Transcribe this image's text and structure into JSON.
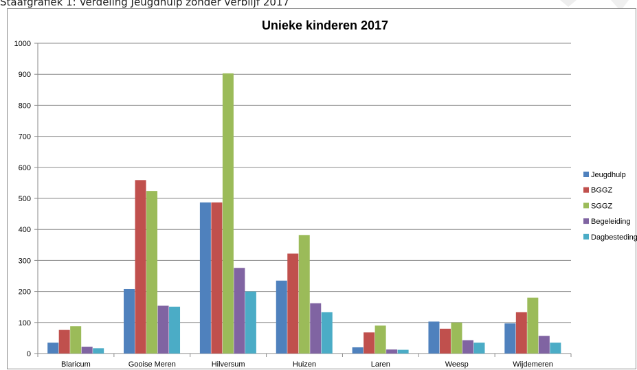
{
  "caption": "Staafgrafiek 1: Verdeling Jeugdhulp zonder verblijf 2017",
  "chart_data": {
    "type": "bar",
    "title": "Unieke kinderen 2017",
    "xlabel": "",
    "ylabel": "",
    "categories": [
      "Blaricum",
      "Gooise Meren",
      "Hilversum",
      "Huizen",
      "Laren",
      "Weesp",
      "Wijdemeren"
    ],
    "series": [
      {
        "name": "Jeugdhulp",
        "color": "#4f81bd",
        "values": [
          35,
          208,
          487,
          235,
          20,
          103,
          97
        ]
      },
      {
        "name": "BGGZ",
        "color": "#c0504d",
        "values": [
          76,
          559,
          487,
          322,
          68,
          80,
          133
        ]
      },
      {
        "name": "SGGZ",
        "color": "#9bbb59",
        "values": [
          88,
          524,
          903,
          382,
          90,
          100,
          180
        ]
      },
      {
        "name": "Begeleiding",
        "color": "#8064a2",
        "values": [
          22,
          154,
          276,
          162,
          13,
          43,
          57
        ]
      },
      {
        "name": "Dagbesteding",
        "color": "#4bacc6",
        "values": [
          17,
          151,
          200,
          133,
          12,
          35,
          35
        ]
      }
    ],
    "ylim": [
      0,
      1000
    ],
    "yticks": [
      0,
      100,
      200,
      300,
      400,
      500,
      600,
      700,
      800,
      900,
      1000
    ],
    "grid": true,
    "legend": "right"
  }
}
